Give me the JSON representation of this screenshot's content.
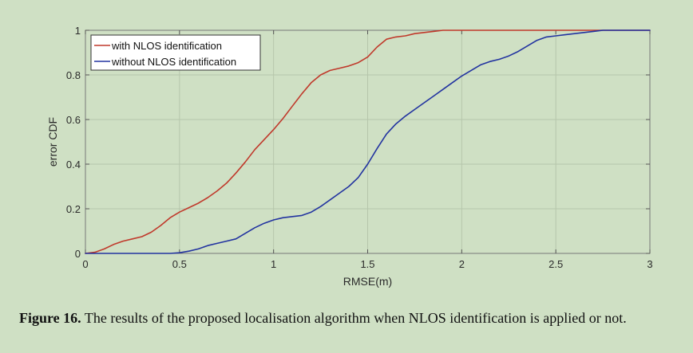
{
  "chart_data": {
    "type": "line",
    "xlabel": "RMSE(m)",
    "ylabel": "error CDF",
    "xlim": [
      0,
      3
    ],
    "ylim": [
      0,
      1
    ],
    "xticks": [
      "0",
      "0.5",
      "1",
      "1.5",
      "2",
      "2.5",
      "3"
    ],
    "yticks": [
      "0",
      "0.2",
      "0.4",
      "0.6",
      "0.8",
      "1"
    ],
    "grid": true,
    "legend_position": "top-left",
    "series": [
      {
        "name": "with NLOS identification",
        "color": "#c0392b",
        "x": [
          0.0,
          0.05,
          0.1,
          0.15,
          0.2,
          0.25,
          0.3,
          0.35,
          0.4,
          0.45,
          0.5,
          0.55,
          0.6,
          0.65,
          0.7,
          0.75,
          0.8,
          0.85,
          0.9,
          0.95,
          1.0,
          1.05,
          1.1,
          1.15,
          1.2,
          1.25,
          1.3,
          1.35,
          1.4,
          1.45,
          1.5,
          1.55,
          1.6,
          1.65,
          1.7,
          1.75,
          1.8,
          1.85,
          1.9,
          1.95,
          2.0,
          2.5,
          2.75,
          3.0
        ],
        "y": [
          0.0,
          0.005,
          0.02,
          0.04,
          0.055,
          0.065,
          0.075,
          0.095,
          0.125,
          0.16,
          0.185,
          0.205,
          0.225,
          0.25,
          0.28,
          0.315,
          0.36,
          0.41,
          0.465,
          0.51,
          0.555,
          0.605,
          0.66,
          0.715,
          0.765,
          0.8,
          0.82,
          0.83,
          0.84,
          0.855,
          0.88,
          0.925,
          0.96,
          0.97,
          0.975,
          0.985,
          0.99,
          0.995,
          1.0,
          1.0,
          1.0,
          1.0,
          1.0,
          1.0
        ]
      },
      {
        "name": "without NLOS identification",
        "color": "#2233a0",
        "x": [
          0.0,
          0.3,
          0.45,
          0.5,
          0.55,
          0.6,
          0.65,
          0.7,
          0.75,
          0.8,
          0.85,
          0.9,
          0.95,
          1.0,
          1.05,
          1.1,
          1.15,
          1.2,
          1.25,
          1.3,
          1.35,
          1.4,
          1.45,
          1.5,
          1.55,
          1.6,
          1.65,
          1.7,
          1.75,
          1.8,
          1.85,
          1.9,
          1.95,
          2.0,
          2.05,
          2.1,
          2.15,
          2.2,
          2.25,
          2.3,
          2.35,
          2.4,
          2.45,
          2.5,
          2.55,
          2.6,
          2.65,
          2.7,
          2.75,
          2.8,
          3.0
        ],
        "y": [
          0.0,
          0.0,
          0.0,
          0.003,
          0.01,
          0.02,
          0.035,
          0.045,
          0.055,
          0.065,
          0.09,
          0.115,
          0.135,
          0.15,
          0.16,
          0.165,
          0.17,
          0.185,
          0.21,
          0.24,
          0.27,
          0.3,
          0.34,
          0.4,
          0.47,
          0.535,
          0.58,
          0.615,
          0.645,
          0.675,
          0.705,
          0.735,
          0.765,
          0.795,
          0.82,
          0.845,
          0.86,
          0.87,
          0.885,
          0.905,
          0.93,
          0.955,
          0.97,
          0.975,
          0.98,
          0.985,
          0.99,
          0.995,
          1.0,
          1.0,
          1.0
        ]
      }
    ]
  },
  "caption": {
    "label": "Figure 16.",
    "text": " The results of the proposed localisation algorithm when NLOS identification is applied or not."
  }
}
